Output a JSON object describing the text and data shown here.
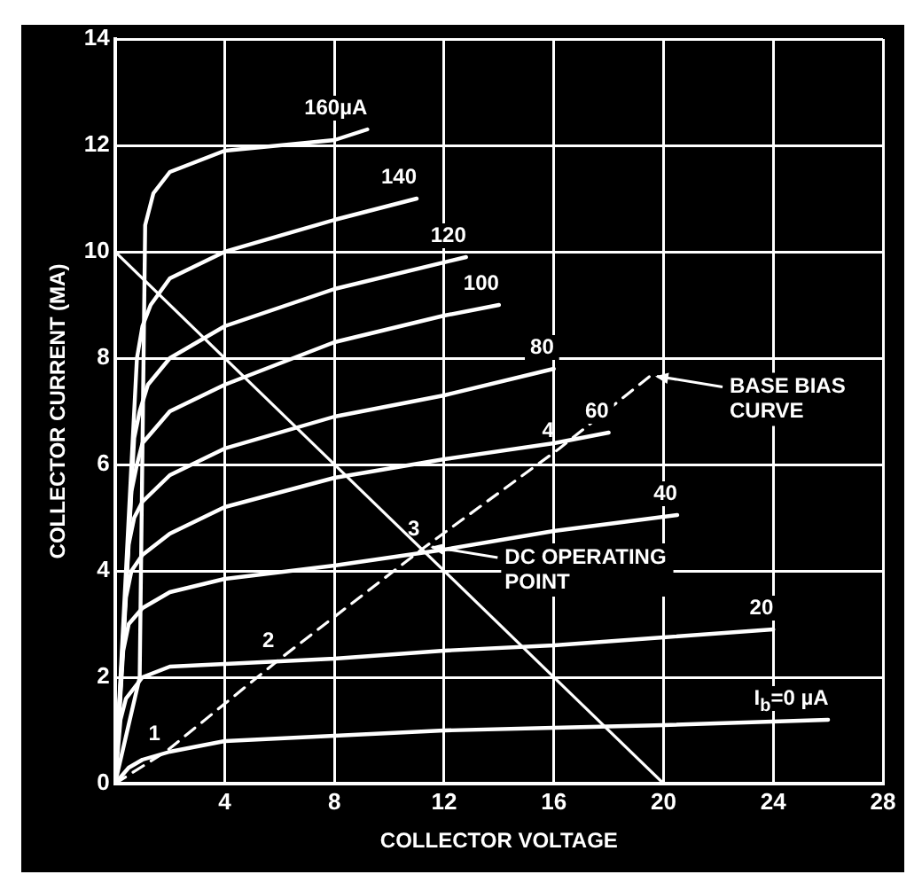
{
  "chart_data": {
    "type": "line",
    "xlabel": "COLLECTOR VOLTAGE",
    "ylabel": "COLLECTOR CURRENT (MA)",
    "xlim": [
      0,
      28
    ],
    "xticks": [
      {
        "value": 0,
        "label": null
      },
      4,
      8,
      12,
      16,
      20,
      24,
      28
    ],
    "ylim": [
      0,
      14
    ],
    "yticks": [
      0,
      2,
      4,
      6,
      8,
      10,
      12,
      14
    ],
    "grid": true,
    "legend": false,
    "marker": "none",
    "line_style": "solid",
    "series": [
      {
        "name": "I$_{b}$=0 µA",
        "color": "#ffffff",
        "x": [
          0,
          0.5,
          1,
          2,
          4,
          8,
          12,
          16,
          20,
          26
        ],
        "values": [
          0,
          0.3,
          0.45,
          0.6,
          0.8,
          0.9,
          1.0,
          1.05,
          1.1,
          1.2
        ]
      },
      {
        "name": "20",
        "color": "#ffffff",
        "x": [
          0,
          0.2,
          0.4,
          1,
          2,
          4,
          8,
          12,
          16,
          20,
          24
        ],
        "values": [
          0,
          1.2,
          1.6,
          2.0,
          2.2,
          2.25,
          2.35,
          2.5,
          2.6,
          2.75,
          2.9
        ]
      },
      {
        "name": "40",
        "color": "#ffffff",
        "x": [
          0,
          0.3,
          0.5,
          1,
          2,
          4,
          8,
          12,
          16,
          20.5
        ],
        "values": [
          0,
          2.5,
          3.0,
          3.3,
          3.6,
          3.85,
          4.1,
          4.4,
          4.75,
          5.05
        ]
      },
      {
        "name": "60",
        "color": "#ffffff",
        "x": [
          0,
          0.4,
          0.6,
          1,
          2,
          4,
          8,
          12,
          16,
          18
        ],
        "values": [
          0,
          3.5,
          4.0,
          4.3,
          4.7,
          5.2,
          5.75,
          6.1,
          6.4,
          6.6
        ]
      },
      {
        "name": "80",
        "color": "#ffffff",
        "x": [
          0,
          0.5,
          0.7,
          1,
          2,
          4,
          8,
          12,
          16
        ],
        "values": [
          0,
          4.5,
          5.0,
          5.3,
          5.8,
          6.3,
          6.9,
          7.3,
          7.8
        ]
      },
      {
        "name": "100",
        "color": "#ffffff",
        "x": [
          0,
          0.6,
          0.8,
          1,
          2,
          4,
          8,
          12,
          14
        ],
        "values": [
          0,
          5.5,
          6.0,
          6.4,
          7.0,
          7.5,
          8.3,
          8.8,
          9.0
        ]
      },
      {
        "name": "120",
        "color": "#ffffff",
        "x": [
          0,
          0.7,
          0.9,
          1.2,
          2,
          4,
          8,
          12.8
        ],
        "values": [
          0,
          6.5,
          7.0,
          7.5,
          8.0,
          8.6,
          9.3,
          9.9
        ]
      },
      {
        "name": "140",
        "color": "#ffffff",
        "x": [
          0,
          0.8,
          1,
          1.3,
          2,
          4,
          8,
          11
        ],
        "values": [
          0,
          8.0,
          8.6,
          9.0,
          9.5,
          10.0,
          10.6,
          11.0
        ]
      },
      {
        "name": "160µA",
        "color": "#ffffff",
        "x": [
          0,
          0.9,
          1.1,
          1.4,
          2,
          4,
          8,
          9.2
        ],
        "values": [
          0,
          2.0,
          10.5,
          11.1,
          11.5,
          11.9,
          12.1,
          12.3
        ]
      },
      {
        "color": "#ffffff",
        "x": [
          0,
          20
        ],
        "values": [
          10,
          0
        ]
      },
      {
        "color": "#ffffff",
        "line_style": "dashed",
        "x": [
          0,
          1.85,
          6,
          11.3,
          16.2,
          19.5
        ],
        "values": [
          0,
          0.6,
          2.34,
          4.45,
          6.3,
          7.66
        ]
      }
    ],
    "annotations": [
      {
        "text": "1",
        "x": 1.85,
        "y": 0.6
      },
      {
        "text": "2",
        "x": 6,
        "y": 2.34
      },
      {
        "text": "3",
        "x": 11.3,
        "y": 4.45
      },
      {
        "text": "4",
        "x": 16.2,
        "y": 6.3
      },
      {
        "text": "BASE BIAS CURVE",
        "x": 19.5,
        "y": 7.66
      },
      {
        "text": "DC OPERATING POINT",
        "x": 11.3,
        "y": 4.45
      }
    ]
  }
}
